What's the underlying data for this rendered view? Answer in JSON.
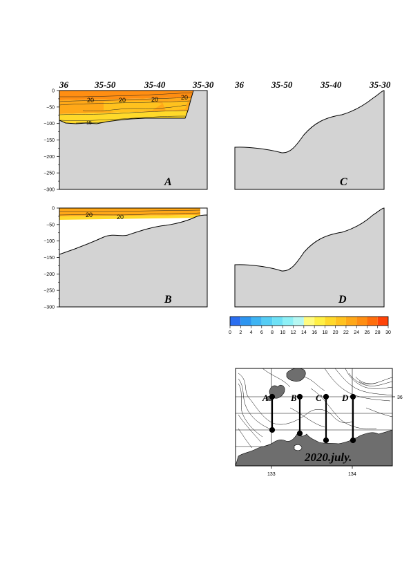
{
  "lat_labels": [
    "36",
    "35-50",
    "35-40",
    "35-30"
  ],
  "depth_ticks": [
    "0",
    "−50",
    "−100",
    "−150",
    "−200",
    "−250",
    "−300"
  ],
  "panels": {
    "A": {
      "label": "A",
      "contour_labels": [
        "20",
        "20",
        "20",
        "20",
        "15"
      ]
    },
    "B": {
      "label": "B",
      "contour_labels": [
        "20",
        "20"
      ]
    },
    "C": {
      "label": "C"
    },
    "D": {
      "label": "D"
    }
  },
  "colorbar": {
    "ticks": [
      "0",
      "2",
      "4",
      "6",
      "8",
      "10",
      "12",
      "14",
      "16",
      "18",
      "20",
      "22",
      "24",
      "26",
      "28",
      "30"
    ],
    "colors": [
      "#2a6ef0",
      "#2d95f0",
      "#3eb4f3",
      "#55cdf5",
      "#6ee1f6",
      "#8ef0f6",
      "#b6f7f2",
      "#fffb80",
      "#fff045",
      "#ffd92a",
      "#ffc21e",
      "#ffa818",
      "#ff8e12",
      "#ff6e0c",
      "#ff4308"
    ]
  },
  "map": {
    "date_label": "2020.july.",
    "lon_labels": [
      "133",
      "134"
    ],
    "lat_label": "36",
    "transect_labels": [
      "A",
      "B",
      "C",
      "D"
    ]
  }
}
